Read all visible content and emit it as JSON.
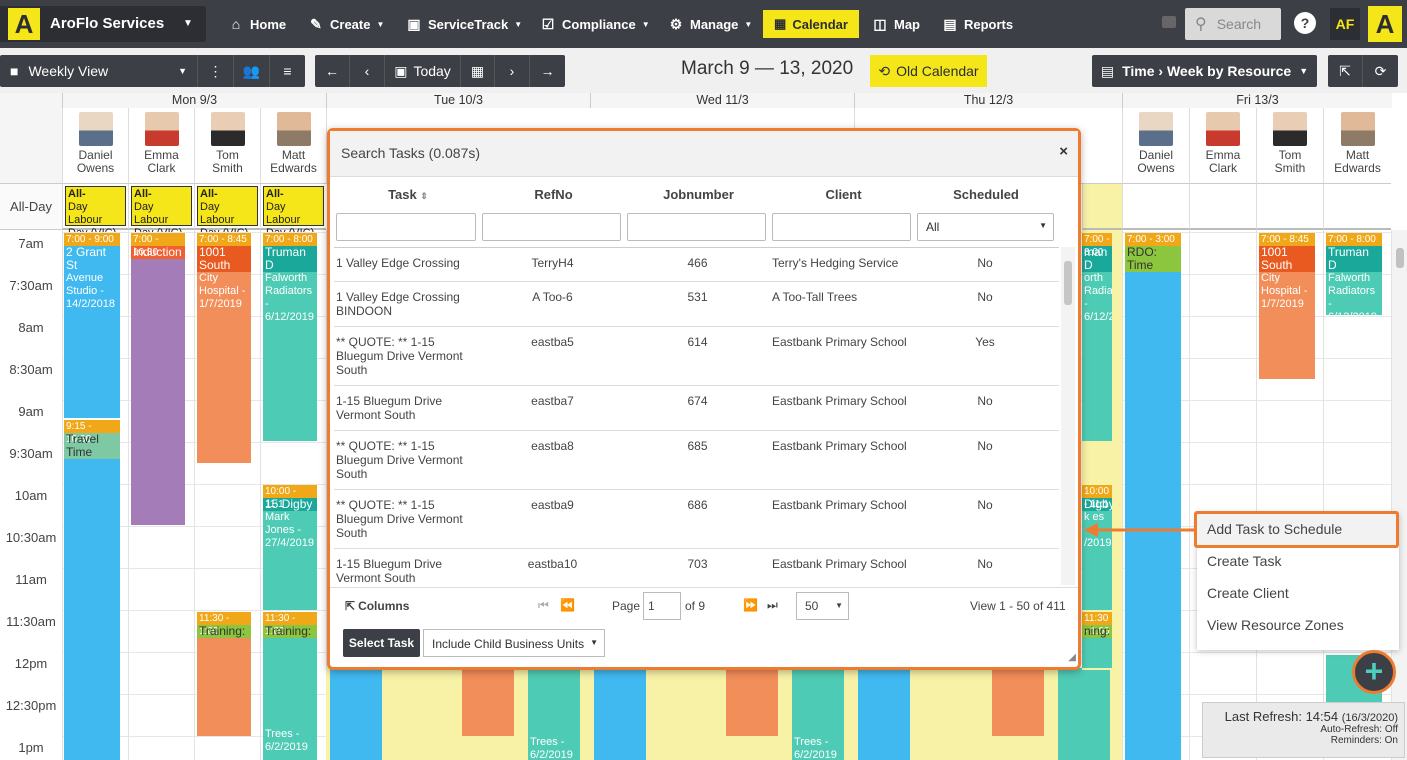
{
  "app": {
    "name": "AroFlo Services",
    "logo_letter": "A",
    "user_initials": "AF"
  },
  "nav": {
    "items": [
      {
        "label": "Home",
        "icon": "home-icon"
      },
      {
        "label": "Create",
        "icon": "pencil-icon"
      },
      {
        "label": "ServiceTrack",
        "icon": "briefcase-icon"
      },
      {
        "label": "Compliance",
        "icon": "checkbox-icon"
      },
      {
        "label": "Manage",
        "icon": "gear-icon"
      },
      {
        "label": "Calendar",
        "icon": "calendar-icon"
      },
      {
        "label": "Map",
        "icon": "map-icon"
      },
      {
        "label": "Reports",
        "icon": "chart-icon"
      }
    ],
    "search_placeholder": "Search",
    "help": "?"
  },
  "toolbar": {
    "view": "Weekly View",
    "today": "Today",
    "date_range": "March 9 — 13, 2020",
    "old_calendar": "Old Calendar",
    "time_view": "Time › Week by Resource"
  },
  "days": [
    "Mon 9/3",
    "Tue 10/3",
    "Wed 11/3",
    "Thu 12/3",
    "Fri 13/3"
  ],
  "resources": [
    {
      "first": "Daniel",
      "last": "Owens"
    },
    {
      "first": "Emma",
      "last": "Clark"
    },
    {
      "first": "Tom",
      "last": "Smith"
    },
    {
      "first": "Matt",
      "last": "Edwards"
    }
  ],
  "allday": {
    "label": "All-Day",
    "event_line1": "All-",
    "event_line2": "Day Labour",
    "event_line3": "Day (VIC)"
  },
  "times": [
    "7am",
    "7:30am",
    "8am",
    "8:30am",
    "9am",
    "9:30am",
    "10am",
    "10:30am",
    "11am",
    "11:30am",
    "12pm",
    "12:30pm",
    "1pm"
  ],
  "events": {
    "mon_d1": {
      "time": "7:00 - 9:00",
      "title": "2 Grant St",
      "detail": "Avenue Studio - 14/2/2018"
    },
    "mon_d2": {
      "time": "9:15 - 10:30",
      "title": "Travel Time"
    },
    "mon_e1": {
      "time": "7:00 - 10:30",
      "title": "Induction"
    },
    "mon_t1": {
      "time": "7:00 - 8:45",
      "title": "1001 South",
      "detail": "City Hospital - 1/7/2019"
    },
    "mon_t2": {
      "time": "11:30 - 1:00",
      "title": "Training:"
    },
    "mon_m1": {
      "time": "7:00 - 8:00",
      "title": "Truman D",
      "detail": "Falworth Radiators - 6/12/2019"
    },
    "mon_m2": {
      "time": "10:00 - 11:1",
      "title": "15 Digby",
      "detail": "Mark Jones - 27/4/2019"
    },
    "mon_m3": {
      "time": "11:30 - 1:00",
      "title": "Training:"
    },
    "tue_trees": "Trees - 6/2/2019",
    "fri_d1": {
      "time": "7:00 - 3:00",
      "title": "RDO: Time"
    },
    "fri_t1": {
      "time": "7:00 - 8:45",
      "title": "1001 South",
      "detail": "City Hospital - 1/7/2019"
    },
    "fri_m1": {
      "time": "7:00 - 8:00",
      "title": "Truman D",
      "detail": "Falworth Radiators - 6/12/2019"
    },
    "thu_m1": {
      "time": "7:00 - 8:00",
      "title": "man D",
      "detail": "orth Radiators - 6/12/2019"
    },
    "thu_m2": {
      "time": "10:00 - 11:1",
      "title": "Digby",
      "detail": "k es - /2019"
    },
    "thu_m3": {
      "time": "11:30 - 1:00",
      "title": "ning:"
    }
  },
  "modal": {
    "title": "Search Tasks (0.087s)",
    "close": "×",
    "columns": [
      "Task",
      "RefNo",
      "Jobnumber",
      "Client",
      "Scheduled"
    ],
    "scheduled_filter": "All",
    "rows": [
      {
        "task": "1 Valley Edge Crossing",
        "ref": "TerryH4",
        "job": "466",
        "client": "Terry's Hedging Service",
        "sched": "No"
      },
      {
        "task": "1 Valley Edge Crossing BINDOON",
        "ref": "A Too-6",
        "job": "531",
        "client": "A Too-Tall Trees",
        "sched": "No"
      },
      {
        "task": "** QUOTE: ** 1-15 Bluegum Drive Vermont South",
        "ref": "eastba5",
        "job": "614",
        "client": "Eastbank Primary School",
        "sched": "Yes"
      },
      {
        "task": "1-15 Bluegum Drive Vermont South",
        "ref": "eastba7",
        "job": "674",
        "client": "Eastbank Primary School",
        "sched": "No"
      },
      {
        "task": "** QUOTE: ** 1-15 Bluegum Drive Vermont South",
        "ref": "eastba8",
        "job": "685",
        "client": "Eastbank Primary School",
        "sched": "No"
      },
      {
        "task": "** QUOTE: ** 1-15 Bluegum Drive Vermont South",
        "ref": "eastba9",
        "job": "686",
        "client": "Eastbank Primary School",
        "sched": "No"
      },
      {
        "task": "1-15 Bluegum Drive Vermont South",
        "ref": "eastba10",
        "job": "703",
        "client": "Eastbank Primary School",
        "sched": "No"
      }
    ],
    "columns_btn": "Columns",
    "page_label": "Page",
    "page_value": "1",
    "page_of": "of 9",
    "page_size": "50",
    "view_range": "View 1 - 50 of 411",
    "select_task": "Select Task",
    "child_units": "Include Child Business Units"
  },
  "context_menu": [
    "Add Task to Schedule",
    "Create Task",
    "Create Client",
    "View Resource Zones"
  ],
  "fab": "+",
  "refresh": {
    "last": "Last Refresh: 14:54",
    "date": "(16/3/2020)",
    "auto": "Auto-Refresh: Off",
    "reminders": "Reminders: On"
  },
  "colors": {
    "nav": "#3d3f46",
    "accent": "#f5e61a",
    "highlight": "#ef7b30",
    "blue": "#3fb9ef",
    "teal": "#4ecbb4",
    "orange": "#f28e5a",
    "purple": "#a37cb8"
  }
}
